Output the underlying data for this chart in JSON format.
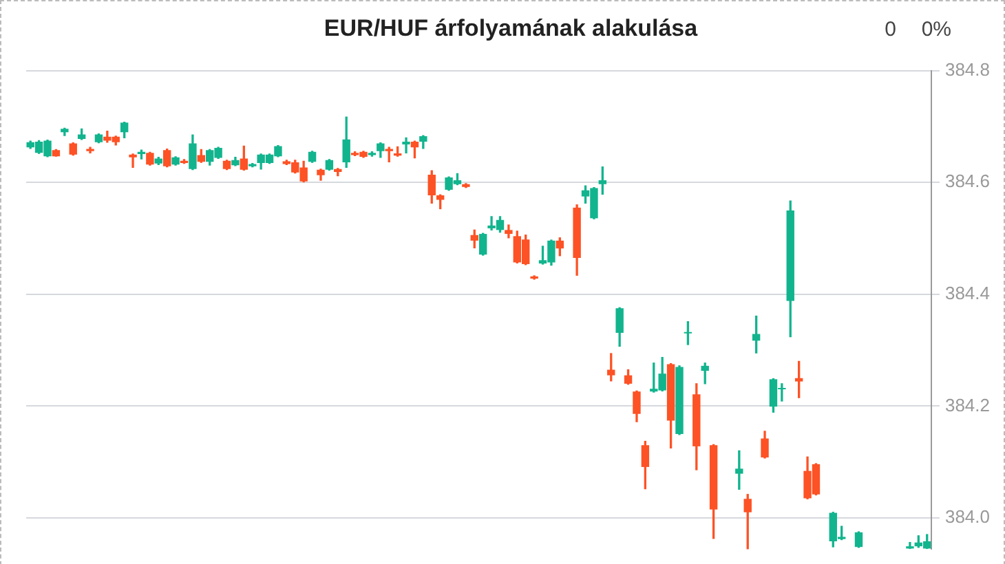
{
  "chart_data": {
    "type": "candlestick",
    "title": "EUR/HUF árfolyamának alakulása",
    "annotations": [
      "0",
      "0%"
    ],
    "categories": [
      null,
      null,
      null,
      null,
      null,
      null,
      null,
      null,
      null,
      null,
      null,
      null,
      null,
      null,
      null,
      null,
      null,
      null,
      null,
      null,
      null,
      null,
      null,
      null,
      null,
      null,
      null,
      null,
      null,
      null,
      null,
      null,
      null,
      null,
      null,
      null,
      null,
      null,
      null,
      null,
      null,
      null,
      null,
      null,
      null,
      null,
      null,
      null,
      null,
      null,
      null,
      null,
      null,
      null,
      null,
      null,
      null,
      null,
      null,
      null,
      null,
      null,
      null,
      null,
      null,
      null,
      null,
      null,
      null,
      null,
      null,
      null,
      null,
      null,
      null,
      null,
      null,
      null,
      null,
      null,
      null,
      null,
      null,
      null,
      null,
      null,
      null,
      null,
      null,
      null,
      null,
      null,
      null,
      null,
      null,
      null,
      null,
      null,
      null,
      null,
      null,
      null,
      null,
      null,
      null,
      null
    ],
    "ohlc": [
      [
        384.663,
        384.674,
        384.661,
        384.672
      ],
      [
        384.653,
        384.675,
        384.652,
        384.673
      ],
      [
        384.647,
        384.676,
        384.646,
        384.675
      ],
      [
        384.658,
        384.659,
        384.647,
        384.647
      ],
      [
        384.69,
        384.697,
        384.684,
        384.696
      ],
      [
        384.67,
        384.671,
        384.649,
        384.65
      ],
      [
        384.678,
        384.696,
        384.677,
        384.686
      ],
      [
        384.66,
        384.663,
        384.653,
        384.656
      ],
      [
        384.672,
        384.687,
        384.671,
        384.686
      ],
      [
        384.682,
        384.692,
        384.672,
        384.675
      ],
      [
        384.682,
        384.683,
        384.667,
        384.672
      ],
      [
        384.69,
        384.708,
        384.68,
        384.707
      ],
      [
        384.65,
        384.651,
        384.627,
        384.645
      ],
      [
        384.651,
        384.658,
        384.642,
        384.655
      ],
      [
        384.653,
        384.654,
        384.631,
        384.632
      ],
      [
        384.634,
        384.645,
        384.632,
        384.643
      ],
      [
        384.658,
        384.66,
        384.628,
        384.629
      ],
      [
        384.632,
        384.646,
        384.631,
        384.645
      ],
      [
        384.639,
        384.641,
        384.634,
        384.635
      ],
      [
        384.624,
        384.685,
        384.623,
        384.67
      ],
      [
        384.649,
        384.659,
        384.636,
        384.637
      ],
      [
        384.637,
        384.659,
        384.631,
        384.658
      ],
      [
        384.644,
        384.663,
        384.643,
        384.662
      ],
      [
        384.639,
        384.64,
        384.623,
        384.624
      ],
      [
        384.631,
        384.645,
        384.63,
        384.64
      ],
      [
        384.643,
        384.665,
        384.622,
        384.623
      ],
      [
        384.629,
        384.634,
        384.628,
        384.633
      ],
      [
        384.635,
        384.651,
        384.624,
        384.65
      ],
      [
        384.635,
        384.651,
        384.634,
        384.65
      ],
      [
        384.647,
        384.666,
        384.646,
        384.665
      ],
      [
        384.638,
        384.64,
        384.632,
        384.633
      ],
      [
        384.636,
        384.64,
        384.617,
        384.618
      ],
      [
        384.627,
        384.638,
        384.601,
        384.602
      ],
      [
        384.637,
        384.656,
        384.636,
        384.655
      ],
      [
        384.623,
        384.624,
        384.604,
        384.613
      ],
      [
        384.623,
        384.641,
        384.622,
        384.64
      ],
      [
        384.624,
        384.625,
        384.612,
        384.619
      ],
      [
        384.636,
        384.717,
        384.627,
        384.677
      ],
      [
        384.653,
        384.655,
        384.648,
        384.649
      ],
      [
        384.655,
        384.656,
        384.645,
        384.646
      ],
      [
        384.649,
        384.655,
        384.647,
        384.653
      ],
      [
        384.656,
        384.671,
        384.645,
        384.67
      ],
      [
        384.66,
        384.663,
        384.637,
        384.656
      ],
      [
        384.652,
        384.664,
        384.647,
        384.648
      ],
      [
        384.668,
        384.68,
        384.653,
        384.673
      ],
      [
        384.673,
        384.674,
        384.644,
        384.663
      ],
      [
        384.673,
        384.684,
        384.661,
        384.683
      ],
      [
        384.614,
        384.621,
        384.563,
        384.577
      ],
      [
        384.577,
        384.578,
        384.553,
        384.569
      ],
      [
        384.587,
        384.61,
        384.586,
        384.609
      ],
      [
        384.597,
        384.616,
        384.596,
        384.604
      ],
      [
        384.597,
        384.598,
        384.591,
        384.592
      ],
      [
        384.506,
        384.515,
        384.483,
        384.496
      ],
      [
        384.471,
        384.509,
        384.47,
        384.508
      ],
      [
        384.518,
        384.539,
        384.515,
        384.523
      ],
      [
        384.515,
        384.539,
        384.511,
        384.533
      ],
      [
        384.515,
        384.524,
        384.501,
        384.508
      ],
      [
        384.504,
        384.513,
        384.456,
        384.457
      ],
      [
        384.498,
        384.506,
        384.453,
        384.454
      ],
      [
        384.432,
        384.433,
        384.427,
        384.428
      ],
      [
        384.455,
        384.486,
        384.454,
        384.461
      ],
      [
        384.457,
        384.497,
        384.452,
        384.496
      ],
      [
        384.496,
        384.501,
        384.469,
        384.482
      ],
      null,
      [
        384.555,
        384.56,
        384.434,
        384.465
      ],
      [
        384.575,
        384.594,
        384.563,
        384.586
      ],
      [
        384.536,
        384.591,
        384.535,
        384.59
      ],
      [
        384.597,
        384.628,
        384.579,
        384.604
      ],
      [
        384.265,
        384.294,
        384.245,
        384.255
      ],
      [
        384.331,
        384.376,
        384.307,
        384.375
      ],
      [
        384.255,
        384.265,
        384.239,
        384.24
      ],
      [
        384.226,
        384.227,
        384.172,
        384.186
      ],
      [
        384.13,
        384.137,
        384.052,
        384.091
      ],
      [
        384.226,
        384.277,
        384.225,
        384.231
      ],
      [
        384.228,
        384.287,
        384.227,
        384.258
      ],
      [
        384.275,
        384.276,
        384.125,
        384.174
      ],
      [
        384.15,
        384.272,
        384.149,
        384.27
      ],
      [
        384.33,
        384.351,
        384.31,
        384.331
      ],
      [
        384.221,
        384.24,
        384.086,
        384.128
      ],
      [
        384.263,
        384.277,
        384.24,
        384.272
      ],
      [
        384.13,
        384.131,
        383.963,
        384.015
      ],
      null,
      null,
      [
        384.079,
        384.12,
        384.051,
        384.088
      ],
      [
        384.034,
        384.042,
        383.944,
        384.01
      ],
      [
        384.317,
        384.361,
        384.295,
        384.329
      ],
      [
        384.142,
        384.155,
        384.107,
        384.108
      ],
      [
        384.199,
        384.249,
        384.189,
        384.248
      ],
      [
        384.23,
        384.24,
        384.209,
        384.232
      ],
      [
        384.388,
        384.567,
        384.324,
        384.55
      ],
      [
        384.25,
        384.28,
        384.215,
        384.244
      ],
      [
        384.084,
        384.109,
        384.034,
        384.035
      ],
      [
        384.096,
        384.097,
        384.041,
        384.042
      ],
      null,
      [
        383.958,
        384.01,
        383.948,
        384.009
      ],
      [
        383.962,
        383.985,
        383.961,
        383.966
      ],
      null,
      [
        383.948,
        383.975,
        383.947,
        383.974
      ],
      null,
      null,
      null,
      null,
      null,
      [
        383.945,
        383.956,
        383.945,
        383.949
      ],
      [
        383.949,
        383.968,
        383.947,
        383.956
      ],
      [
        383.945,
        383.97,
        383.945,
        383.958
      ]
    ],
    "colors": [
      "#12b48e",
      "#12b48e",
      "#12b48e",
      "#fd5225",
      "#12b48e",
      "#fd5225",
      "#12b48e",
      "#fd5225",
      "#12b48e",
      "#fd5225",
      "#fd5225",
      "#12b48e",
      "#fd5225",
      "#12b48e",
      "#fd5225",
      "#12b48e",
      "#fd5225",
      "#12b48e",
      "#fd5225",
      "#12b48e",
      "#fd5225",
      "#12b48e",
      "#12b48e",
      "#fd5225",
      "#12b48e",
      "#fd5225",
      "#12b48e",
      "#12b48e",
      "#12b48e",
      "#12b48e",
      "#fd5225",
      "#fd5225",
      "#fd5225",
      "#12b48e",
      "#fd5225",
      "#12b48e",
      "#fd5225",
      "#12b48e",
      "#fd5225",
      "#fd5225",
      "#12b48e",
      "#12b48e",
      "#fd5225",
      "#fd5225",
      "#12b48e",
      "#fd5225",
      "#12b48e",
      "#fd5225",
      "#fd5225",
      "#12b48e",
      "#12b48e",
      "#fd5225",
      "#fd5225",
      "#12b48e",
      "#12b48e",
      "#12b48e",
      "#fd5225",
      "#fd5225",
      "#fd5225",
      "#fd5225",
      "#12b48e",
      "#12b48e",
      "#fd5225",
      null,
      "#fd5225",
      "#12b48e",
      "#12b48e",
      "#12b48e",
      "#fd5225",
      "#12b48e",
      "#fd5225",
      "#fd5225",
      "#fd5225",
      "#12b48e",
      "#12b48e",
      "#fd5225",
      "#12b48e",
      "#12b48e",
      "#fd5225",
      "#12b48e",
      "#fd5225",
      null,
      null,
      "#12b48e",
      "#fd5225",
      "#12b48e",
      "#fd5225",
      "#12b48e",
      "#12b48e",
      "#12b48e",
      "#fd5225",
      "#fd5225",
      "#fd5225",
      null,
      "#12b48e",
      "#12b48e",
      null,
      "#12b48e",
      null,
      null,
      null,
      null,
      null,
      "#12b48e",
      "#12b48e",
      "#12b48e"
    ],
    "ylim": [
      383.944,
      384.8
    ],
    "yticks": [
      {
        "value": 384,
        "label": "384.0"
      },
      384.2,
      384.4,
      384.6,
      384.8
    ],
    "grid": "y",
    "tick_labels": "y"
  }
}
